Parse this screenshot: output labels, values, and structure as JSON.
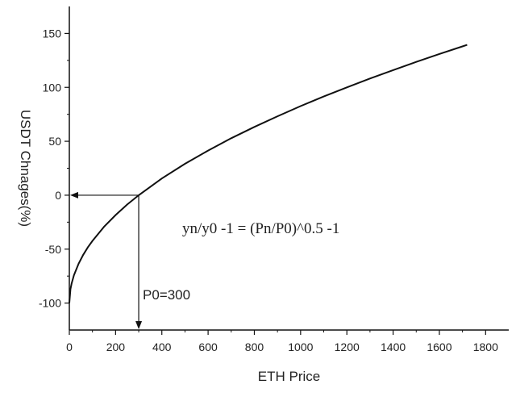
{
  "chart_data": {
    "type": "line",
    "xlabel": "ETH Price",
    "ylabel": "USDT Chnages(%)",
    "xlim": [
      0,
      1900
    ],
    "ylim": [
      -125,
      175
    ],
    "xticks": [
      0,
      200,
      400,
      600,
      800,
      1000,
      1200,
      1400,
      1600,
      1800
    ],
    "yticks": [
      -100,
      -50,
      0,
      50,
      100,
      150
    ],
    "grid": false,
    "series": [
      {
        "x": [
          0,
          5,
          10,
          20,
          40,
          60,
          80,
          100,
          150,
          200,
          250,
          300,
          400,
          500,
          600,
          700,
          800,
          900,
          1000,
          1100,
          1200,
          1300,
          1400,
          1500,
          1600,
          1700,
          1720
        ],
        "y": [
          -100,
          -87.1,
          -81.7,
          -74.2,
          -63.5,
          -55.3,
          -48.4,
          -42.3,
          -29.3,
          -18.4,
          -8.7,
          0,
          15.5,
          29.1,
          41.4,
          52.8,
          63.3,
          73.2,
          82.6,
          91.5,
          100,
          108.2,
          116.0,
          123.6,
          130.9,
          138.0,
          139.4
        ]
      }
    ],
    "annotations": {
      "formula": "yn/y0 -1 = (Pn/P0)^0.5 -1",
      "p0_label": "P0=300",
      "p0_x": 300,
      "p0_y": 0
    }
  }
}
